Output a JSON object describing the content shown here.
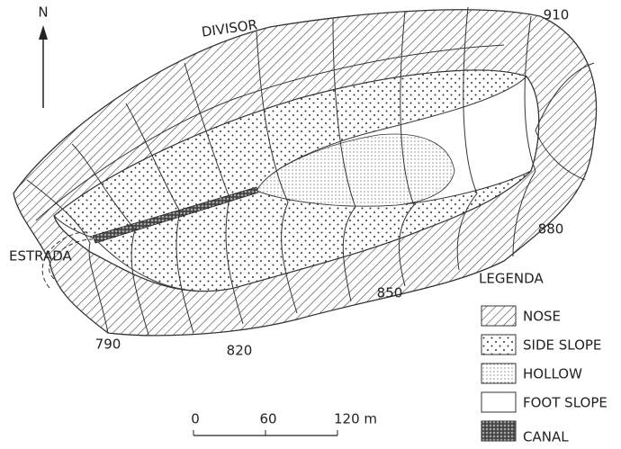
{
  "north": "N",
  "labels": {
    "divisor": "DIVISOR",
    "road": "ESTRADA"
  },
  "contours": [
    "910",
    "880",
    "850",
    "820",
    "790"
  ],
  "legend": {
    "title": "LEGENDA",
    "items": [
      "NOSE",
      "SIDE SLOPE",
      "HOLLOW",
      "FOOT SLOPE",
      "CANAL"
    ]
  },
  "scale": {
    "ticks": [
      "0",
      "60",
      "120 m"
    ]
  }
}
